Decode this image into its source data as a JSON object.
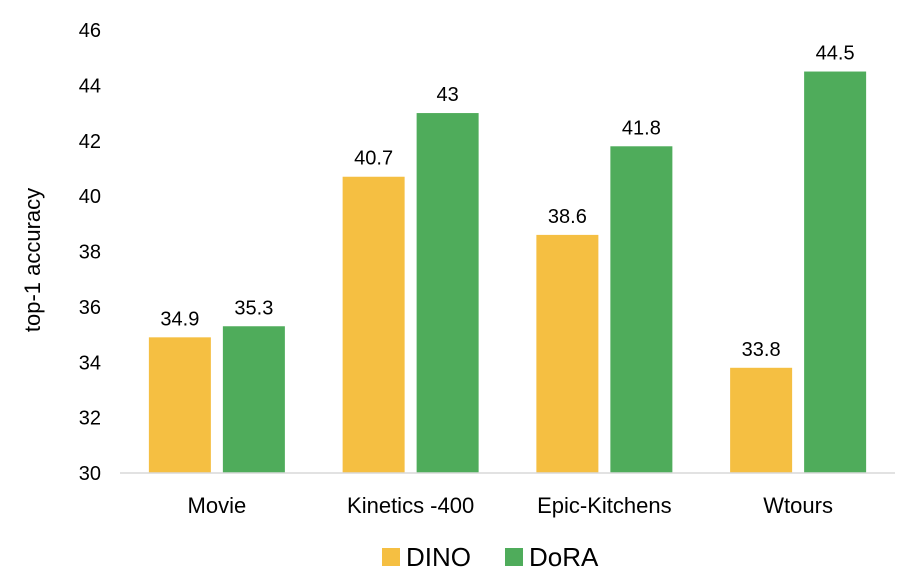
{
  "chart_data": {
    "type": "bar",
    "categories": [
      "Movie",
      "Kinetics -400",
      "Epic-Kitchens",
      "Wtours"
    ],
    "series": [
      {
        "name": "DINO",
        "values": [
          34.9,
          40.7,
          38.6,
          33.8
        ],
        "color": "#F5BF42"
      },
      {
        "name": "DoRA",
        "values": [
          35.3,
          43,
          41.8,
          44.5
        ],
        "color": "#4FAC5B"
      }
    ],
    "title": "",
    "xlabel": "",
    "ylabel": "top-1 accuracy",
    "ylim": [
      30,
      46
    ],
    "yticks": [
      30,
      32,
      34,
      36,
      38,
      40,
      42,
      44,
      46
    ],
    "grid": false,
    "legend_position": "bottom-center"
  }
}
